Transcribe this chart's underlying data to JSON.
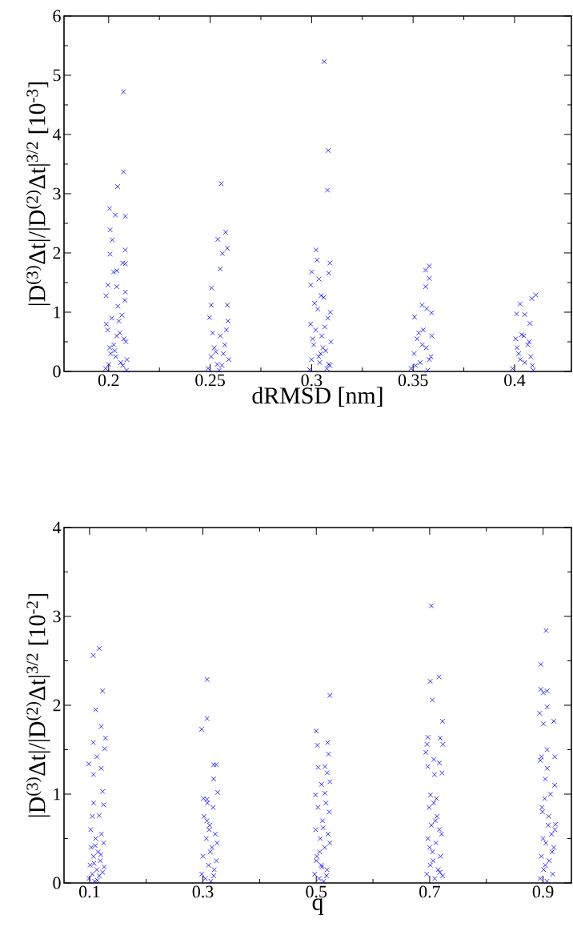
{
  "chart_data": [
    {
      "type": "scatter",
      "xlabel": "dRMSD [nm]",
      "ylabel": "|D$^{(3)}$Δt|/|D$^{(2)}$Δt|$^{3/2}$ [10$^{-3}$]",
      "color": "#0000ff",
      "marker": "cross",
      "xlim": [
        0.178,
        0.428
      ],
      "ylim": [
        0,
        6
      ],
      "xticks": [
        0.2,
        0.25,
        0.3,
        0.35,
        0.4
      ],
      "yticks": [
        0,
        1,
        2,
        3,
        4,
        5,
        6
      ],
      "x": [
        0.2073,
        0.2073,
        0.2044,
        0.2004,
        0.2033,
        0.2082,
        0.2007,
        0.2018,
        0.2007,
        0.2082,
        0.2082,
        0.2024,
        0.204,
        0.2069,
        0.1996,
        0.204,
        0.2082,
        0.1987,
        0.1985,
        0.2,
        0.201,
        0.2025,
        0.204,
        0.205,
        0.2065,
        0.208,
        0.209,
        0.1995,
        0.2015,
        0.203,
        0.2045,
        0.206,
        0.2075,
        0.2088,
        0.1988,
        0.2005,
        0.2035,
        0.2055,
        0.207,
        0.2085,
        0.2555,
        0.2576,
        0.2538,
        0.2585,
        0.256,
        0.255,
        0.2507,
        0.2505,
        0.2585,
        0.2497,
        0.249,
        0.2505,
        0.252,
        0.2535,
        0.255,
        0.2565,
        0.258,
        0.2592,
        0.2512,
        0.2545,
        0.2572,
        0.2588,
        0.2528,
        0.2558,
        0.3062,
        0.3082,
        0.3078,
        0.3022,
        0.3027,
        0.309,
        0.3,
        0.3036,
        0.3084,
        0.2996,
        0.3047,
        0.299,
        0.3,
        0.301,
        0.302,
        0.303,
        0.304,
        0.305,
        0.306,
        0.307,
        0.308,
        0.309,
        0.3095,
        0.2995,
        0.3015,
        0.3035,
        0.3055,
        0.3075,
        0.3092,
        0.3005,
        0.3045,
        0.3065,
        0.3085,
        0.358,
        0.3562,
        0.358,
        0.3562,
        0.3544,
        0.3567,
        0.3507,
        0.3591,
        0.349,
        0.3505,
        0.352,
        0.3535,
        0.355,
        0.3565,
        0.358,
        0.3592,
        0.3512,
        0.3545,
        0.3572,
        0.3588,
        0.3528,
        0.4104,
        0.4085,
        0.4027,
        0.401,
        0.405,
        0.4076,
        0.399,
        0.4005,
        0.402,
        0.4035,
        0.405,
        0.4065,
        0.408,
        0.4092,
        0.4012,
        0.4045,
        0.4072,
        0.4088,
        0.4028
      ],
      "values": [
        4.72,
        3.37,
        3.12,
        2.75,
        2.64,
        2.62,
        2.39,
        2.22,
        1.98,
        2.05,
        1.82,
        1.68,
        1.7,
        1.83,
        1.46,
        1.43,
        1.34,
        1.28,
        0.05,
        0.12,
        0.3,
        0.45,
        0.6,
        0.85,
        0.95,
        1.2,
        0.2,
        0.7,
        0.9,
        0.35,
        1.1,
        0.15,
        0.55,
        0.02,
        0.8,
        0.4,
        0.25,
        0.65,
        0.1,
        0.5,
        3.17,
        2.35,
        2.23,
        2.08,
        1.99,
        1.73,
        1.41,
        1.12,
        1.12,
        0.91,
        0.05,
        0.25,
        0.4,
        0.12,
        0.6,
        0.3,
        0.7,
        0.2,
        0.65,
        0.02,
        0.45,
        0.85,
        0.33,
        0.1,
        5.23,
        3.73,
        3.06,
        2.05,
        1.88,
        1.83,
        1.68,
        1.56,
        1.66,
        1.46,
        1.28,
        0.03,
        0.2,
        0.45,
        0.7,
        1.05,
        0.15,
        0.6,
        1.25,
        0.35,
        0.9,
        0.1,
        0.5,
        0.8,
        1.15,
        0.25,
        0.4,
        0.05,
        1.0,
        0.55,
        0.3,
        0.75,
        0.12,
        1.78,
        1.71,
        1.57,
        1.43,
        1.12,
        1.06,
        0.92,
        0.99,
        0.05,
        0.3,
        0.55,
        0.15,
        0.7,
        0.4,
        0.2,
        0.6,
        0.1,
        0.45,
        0.02,
        0.25,
        0.65,
        1.29,
        1.23,
        1.14,
        0.97,
        0.96,
        0.81,
        0.05,
        0.55,
        0.3,
        0.62,
        0.15,
        0.45,
        0.25,
        0.02,
        0.4,
        0.6,
        0.5,
        0.1,
        0.2
      ]
    },
    {
      "type": "scatter",
      "xlabel": "q",
      "ylabel": "|D$^{(3)}$Δt|/|D$^{(2)}$Δt|$^{3/2}$ [10$^{-2}$]",
      "color": "#0000ff",
      "marker": "cross",
      "xlim": [
        0.055,
        0.95
      ],
      "ylim": [
        0,
        4
      ],
      "xticks": [
        0.1,
        0.3,
        0.5,
        0.7,
        0.9
      ],
      "yticks": [
        0,
        1,
        2,
        3,
        4
      ],
      "x": [
        0.1173,
        0.1066,
        0.123,
        0.111,
        0.1206,
        0.128,
        0.1266,
        0.1066,
        0.0987,
        0.113,
        0.1206,
        0.107,
        0.123,
        0.107,
        0.1246,
        0.105,
        0.117,
        0.099,
        0.101,
        0.103,
        0.105,
        0.107,
        0.109,
        0.111,
        0.113,
        0.115,
        0.117,
        0.119,
        0.121,
        0.123,
        0.125,
        0.102,
        0.108,
        0.114,
        0.12,
        0.126,
        0.11,
        0.3073,
        0.3073,
        0.298,
        0.319,
        0.3236,
        0.319,
        0.326,
        0.3073,
        0.298,
        0.3,
        0.302,
        0.304,
        0.306,
        0.308,
        0.31,
        0.312,
        0.314,
        0.316,
        0.318,
        0.32,
        0.322,
        0.324,
        0.301,
        0.307,
        0.313,
        0.319,
        0.325,
        0.311,
        0.524,
        0.5,
        0.52,
        0.502,
        0.5216,
        0.5033,
        0.5153,
        0.5193,
        0.524,
        0.5093,
        0.4987,
        0.5153,
        0.497,
        0.499,
        0.501,
        0.503,
        0.505,
        0.507,
        0.509,
        0.511,
        0.513,
        0.515,
        0.517,
        0.519,
        0.521,
        0.523,
        0.5,
        0.506,
        0.512,
        0.518,
        0.524,
        0.51,
        0.703,
        0.701,
        0.7166,
        0.7046,
        0.7226,
        0.6967,
        0.7186,
        0.7233,
        0.6953,
        0.6933,
        0.7073,
        0.6967,
        0.7173,
        0.7086,
        0.7219,
        0.7013,
        0.695,
        0.697,
        0.699,
        0.701,
        0.703,
        0.705,
        0.707,
        0.709,
        0.711,
        0.713,
        0.715,
        0.717,
        0.719,
        0.721,
        0.723,
        0.7,
        0.706,
        0.712,
        0.718,
        0.71,
        0.9053,
        0.896,
        0.896,
        0.9073,
        0.9006,
        0.9073,
        0.894,
        0.9006,
        0.919,
        0.9073,
        0.9206,
        0.8973,
        0.8953,
        0.9073,
        0.9206,
        0.904,
        0.895,
        0.897,
        0.899,
        0.901,
        0.903,
        0.905,
        0.907,
        0.909,
        0.911,
        0.913,
        0.915,
        0.917,
        0.919,
        0.921,
        0.898,
        0.904,
        0.91,
        0.916,
        0.922,
        0.9
      ],
      "values": [
        2.64,
        2.56,
        2.16,
        1.95,
        1.76,
        1.63,
        1.51,
        1.58,
        1.34,
        1.42,
        1.29,
        1.22,
        1.03,
        0.9,
        0.88,
        0.75,
        0.76,
        0.05,
        0.2,
        0.4,
        0.1,
        0.3,
        0.02,
        0.5,
        0.15,
        0.35,
        0.08,
        0.25,
        0.55,
        0.12,
        0.45,
        0.6,
        0.22,
        0.03,
        0.32,
        0.18,
        0.42,
        2.29,
        1.85,
        1.73,
        1.33,
        1.33,
        1.17,
        1.02,
        0.94,
        0.1,
        0.3,
        0.75,
        0.05,
        0.5,
        0.9,
        0.2,
        0.65,
        0.02,
        0.4,
        0.85,
        0.15,
        0.55,
        0.25,
        0.95,
        0.7,
        0.35,
        0.08,
        0.45,
        0.6,
        2.11,
        1.71,
        1.58,
        1.55,
        1.45,
        1.3,
        1.31,
        1.24,
        1.14,
        1.11,
        0.99,
        1.01,
        0.1,
        0.6,
        0.3,
        0.85,
        0.05,
        0.5,
        0.2,
        0.7,
        0.02,
        0.4,
        0.9,
        0.15,
        0.55,
        0.8,
        0.25,
        0.35,
        0.62,
        0.08,
        0.45,
        0.18,
        3.12,
        2.27,
        2.32,
        2.06,
        1.82,
        1.64,
        1.63,
        1.56,
        1.56,
        1.47,
        1.39,
        1.31,
        1.35,
        1.22,
        1.24,
        0.99,
        0.1,
        0.5,
        0.85,
        0.2,
        0.65,
        0.35,
        0.9,
        0.05,
        0.45,
        0.75,
        0.15,
        0.6,
        0.3,
        0.55,
        0.08,
        0.4,
        0.25,
        0.95,
        0.12,
        0.7,
        2.84,
        2.46,
        2.18,
        2.16,
        2.14,
        1.98,
        1.91,
        1.79,
        1.82,
        1.5,
        1.42,
        1.42,
        1.38,
        1.29,
        1.1,
        1.17,
        0.05,
        0.3,
        0.8,
        0.15,
        0.95,
        0.45,
        0.02,
        0.65,
        0.25,
        1.0,
        0.55,
        0.1,
        0.4,
        0.6,
        0.85,
        0.2,
        0.75,
        0.35,
        0.66,
        0.5
      ]
    }
  ]
}
